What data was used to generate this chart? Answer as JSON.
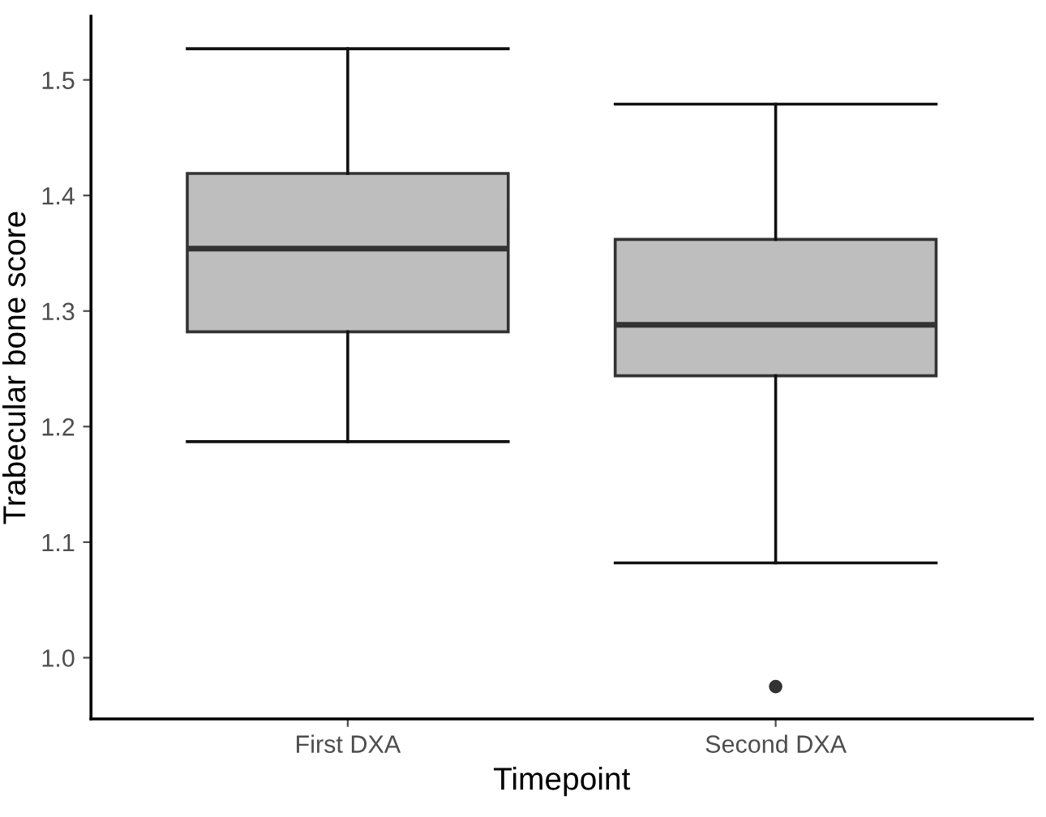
{
  "chart_data": {
    "type": "box",
    "xlabel": "Timepoint",
    "ylabel": "Trabecular bone score",
    "categories": [
      "First DXA",
      "Second DXA"
    ],
    "boxes": [
      {
        "low": 1.187,
        "q1": 1.282,
        "median": 1.354,
        "q3": 1.419,
        "high": 1.527
      },
      {
        "low": 1.082,
        "q1": 1.244,
        "median": 1.288,
        "q3": 1.362,
        "high": 1.479,
        "outliers": [
          0.975
        ]
      }
    ],
    "color": "#bebebe",
    "ylim": [
      0.947,
      1.555
    ],
    "yticks": [
      {
        "value": 1.0,
        "label": "1.0"
      },
      1.1,
      1.2,
      1.3,
      1.4,
      1.5
    ],
    "grid": false
  }
}
